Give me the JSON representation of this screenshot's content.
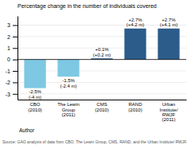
{
  "chart_data": {
    "type": "bar",
    "title": "Percentage change in the number of individuals covered",
    "categories": [
      "CBO\n(2010)",
      "The Lewin\nGroup\n(2011)",
      "CMS\n(2010)",
      "RAND\n(2010)",
      "Urban\nInstitute/\nRWJF\n(2011)"
    ],
    "values": [
      -2.5,
      -1.5,
      0.1,
      2.7,
      2.7
    ],
    "annotations": [
      "-2.5%\n(-4 m)",
      "-1.5%\n(-2.4 m)",
      "+0.1%\n(+0.2 m)",
      "+2.7%\n(+4.2 m)",
      "+2.7%\n(+4.1 m)"
    ],
    "colors": [
      "#7ec8e3",
      "#7ec8e3",
      "#2b5c8a",
      "#2b5c8a",
      "#2b5c8a"
    ],
    "xlabel": "Author",
    "source": "Source: GAO analysis of data from CBO, The Lewin Group, CMS, RAND, and the Urban Institute/ RWJF.",
    "ylim": [
      -3.5,
      3.8
    ],
    "yticks": [
      -3,
      -2,
      -1,
      0,
      1,
      2,
      3
    ],
    "grid": true
  }
}
